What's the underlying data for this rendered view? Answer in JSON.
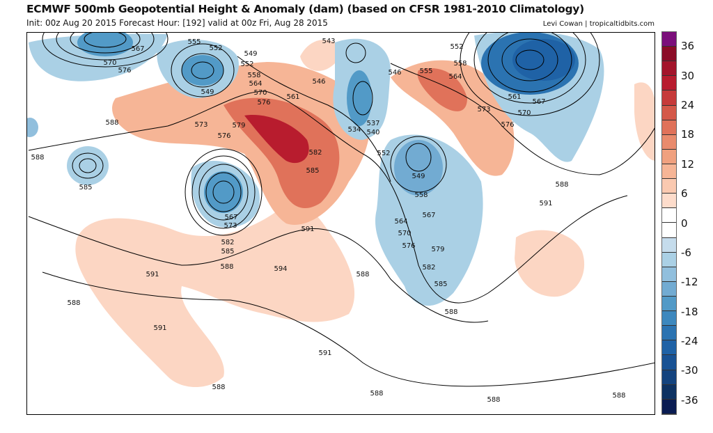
{
  "header": {
    "title": "ECMWF 500mb Geopotential Height & Anomaly (dam) (based on CFSR 1981-2010 Climatology)",
    "subtitle": "Init: 00z Aug 20 2015   Forecast Hour: [192]   valid at 00z Fri, Aug 28 2015",
    "credit": "Levi Cowan | tropicaltidbits.com"
  },
  "colorbar": {
    "colors": [
      "#7b0f7b",
      "#8b0c27",
      "#a3142b",
      "#b81c2e",
      "#c63a3a",
      "#d45849",
      "#e0725a",
      "#e98b6d",
      "#f0a17f",
      "#f6b596",
      "#fac9b0",
      "#fddccb",
      "#ffffff",
      "#ffffff",
      "#c5dcec",
      "#aad0e5",
      "#91bfdd",
      "#72abd2",
      "#529ac7",
      "#3d88be",
      "#2b73b1",
      "#1f62a6",
      "#185294",
      "#13437e",
      "#0d3262",
      "#0a1c52"
    ],
    "labels": [
      "36",
      "30",
      "24",
      "18",
      "12",
      "6",
      "0",
      "-6",
      "-12",
      "-18",
      "-24",
      "-30",
      "-36"
    ]
  },
  "map": {
    "contour_labels": [
      "567",
      "570",
      "576",
      "555",
      "552",
      "549",
      "552",
      "558",
      "564",
      "570",
      "576",
      "561",
      "549",
      "573",
      "576",
      "579",
      "582",
      "585",
      "588",
      "588",
      "585",
      "567",
      "573",
      "582",
      "585",
      "588",
      "591",
      "594",
      "591",
      "588",
      "543",
      "546",
      "546",
      "537",
      "534",
      "540",
      "552",
      "549",
      "558",
      "567",
      "564",
      "570",
      "576",
      "579",
      "582",
      "585",
      "588",
      "552",
      "555",
      "558",
      "564",
      "573",
      "576",
      "561",
      "567",
      "570",
      "588",
      "591",
      "588",
      "591",
      "591",
      "588",
      "588",
      "588",
      "588"
    ]
  }
}
